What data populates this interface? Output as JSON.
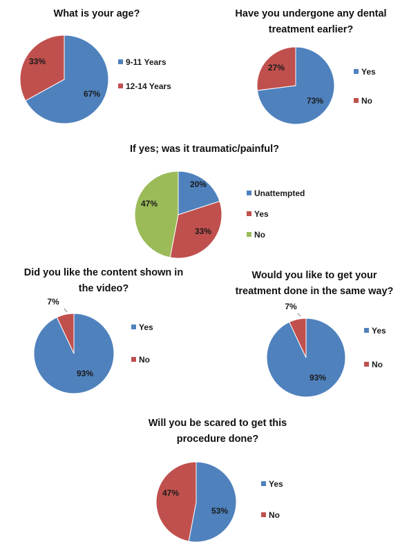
{
  "colors": {
    "blue": "#4F81BD",
    "red": "#C0504D",
    "green": "#9BBB59"
  },
  "chart_data": [
    {
      "type": "pie",
      "title": [
        "What is your age?"
      ],
      "categories": [
        "9-11 Years",
        "12-14 Years"
      ],
      "values": [
        67,
        33
      ],
      "labels": [
        "67%",
        "33%"
      ],
      "colors": [
        "#4F81BD",
        "#C0504D"
      ],
      "legend": "right"
    },
    {
      "type": "pie",
      "title": [
        "Have you undergone any dental",
        "treatment earlier?"
      ],
      "categories": [
        "Yes",
        "No"
      ],
      "values": [
        73,
        27
      ],
      "labels": [
        "73%",
        "27%"
      ],
      "colors": [
        "#4F81BD",
        "#C0504D"
      ],
      "legend": "right"
    },
    {
      "type": "pie",
      "title": [
        "If yes; was it traumatic/painful?"
      ],
      "categories": [
        "Unattempted",
        "Yes",
        "No"
      ],
      "values": [
        20,
        33,
        47
      ],
      "labels": [
        "20%",
        "33%",
        "47%"
      ],
      "colors": [
        "#4F81BD",
        "#C0504D",
        "#9BBB59"
      ],
      "legend": "right"
    },
    {
      "type": "pie",
      "title": [
        "Did you like the content shown in",
        "the video?"
      ],
      "categories": [
        "Yes",
        "No"
      ],
      "values": [
        93,
        7
      ],
      "labels": [
        "93%",
        "7%"
      ],
      "colors": [
        "#4F81BD",
        "#C0504D"
      ],
      "legend": "right"
    },
    {
      "type": "pie",
      "title": [
        "Would you like to get your",
        "treatment done in the same way?"
      ],
      "categories": [
        "Yes",
        "No"
      ],
      "values": [
        93,
        7
      ],
      "labels": [
        "93%",
        "7%"
      ],
      "colors": [
        "#4F81BD",
        "#C0504D"
      ],
      "legend": "right"
    },
    {
      "type": "pie",
      "title": [
        "Will you be scared to get this",
        "procedure done?"
      ],
      "categories": [
        "Yes",
        "No"
      ],
      "values": [
        53,
        47
      ],
      "labels": [
        "53%",
        "47%"
      ],
      "colors": [
        "#4F81BD",
        "#C0504D"
      ],
      "legend": "right"
    }
  ]
}
